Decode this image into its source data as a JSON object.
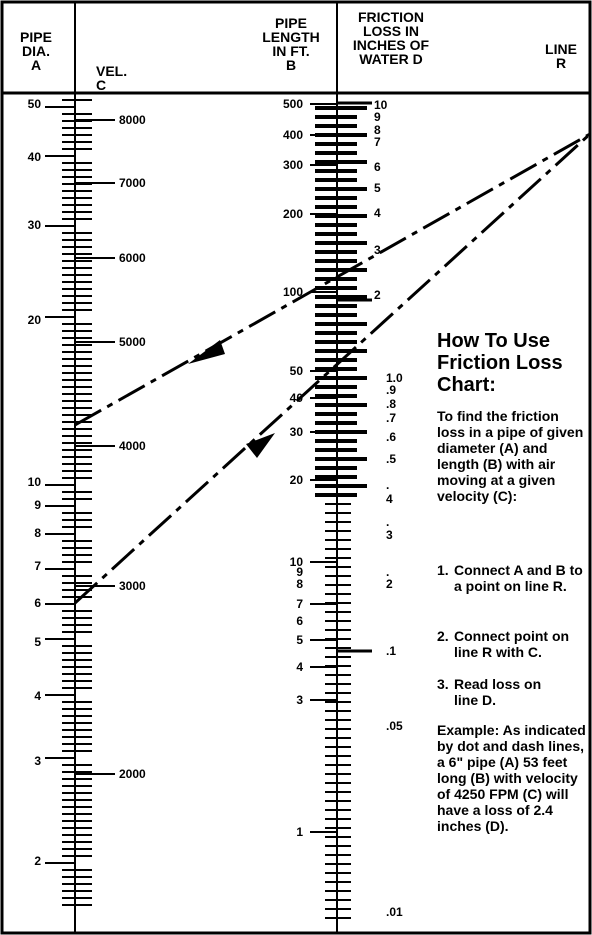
{
  "headers": {
    "pipe_dia": "PIPE\nDIA.\nA",
    "vel": "VEL.\nC",
    "pipe_length": "PIPE\nLENGTH\nIN FT.\nB",
    "friction_loss": "FRICTION\nLOSS IN\nINCHES OF\nWATER D",
    "line_r": "LINE\nR"
  },
  "scales": {
    "pipe_dia": [
      "50",
      "40",
      "30",
      "20",
      "10",
      "9",
      "8",
      "7",
      "6",
      "5",
      "4",
      "3",
      "2"
    ],
    "velocity": [
      "8000",
      "7000",
      "6000",
      "5000",
      "4000",
      "3000",
      "2000"
    ],
    "pipe_length": [
      "500",
      "400",
      "300",
      "200",
      "100",
      "50",
      "40",
      "30",
      "20",
      "10",
      "9",
      "8",
      "7",
      "6",
      "5",
      "4",
      "3",
      "1"
    ],
    "friction_loss": [
      "10",
      "9",
      "8",
      "7",
      "6",
      "5",
      "4",
      "3",
      "2",
      "1.0",
      ".9",
      ".8",
      ".7",
      ".6",
      ".5",
      ".",
      "4",
      ".",
      "3",
      ".",
      "2",
      ".1",
      ".05",
      ".01"
    ]
  },
  "instructions": {
    "title": "How To Use\nFriction Loss\nChart:",
    "intro": "To find the friction loss in a pipe of given diameter (A) and length (B) with air moving at a given velocity (C):",
    "steps": [
      {
        "num": "1.",
        "text": "Connect A and B to a point on line R."
      },
      {
        "num": "2.",
        "text": "Connect point on line R with C."
      },
      {
        "num": "3.",
        "text": "Read loss on line D."
      }
    ],
    "example": "Example: As indicated by dot and dash lines, a 6\" pipe (A) 53 feet long (B) with velocity of 4250 FPM (C)  will have a loss of 2.4 inches (D)."
  }
}
